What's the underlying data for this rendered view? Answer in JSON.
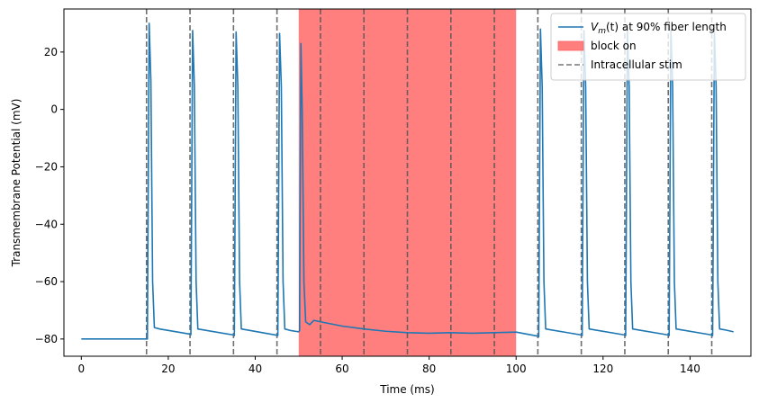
{
  "chart_data": {
    "type": "line",
    "title": "",
    "xlabel": "Time (ms)",
    "ylabel": "Transmembrane Potential (mV)",
    "xlim": [
      -4,
      154
    ],
    "ylim": [
      -86,
      35
    ],
    "xticks": [
      0,
      20,
      40,
      60,
      80,
      100,
      120,
      140
    ],
    "yticks": [
      -80,
      -60,
      -40,
      -20,
      0,
      20
    ],
    "grid": false,
    "legend_position": "top-right",
    "series": [
      {
        "name": "V_m(t) at 90% fiber length",
        "color": "#1f77b4",
        "style": "solid",
        "description": "Resting near -80 mV with action potentials (~+27 mV) after each stimulus; suppressed during block",
        "points": [
          [
            0,
            -80
          ],
          [
            15,
            -80
          ],
          [
            15.2,
            -80
          ],
          [
            15.6,
            30
          ],
          [
            16.0,
            10
          ],
          [
            16.4,
            -60
          ],
          [
            16.8,
            -76
          ],
          [
            18,
            -76.5
          ],
          [
            25,
            -78.3
          ],
          [
            25.2,
            -78.5
          ],
          [
            25.6,
            27.5
          ],
          [
            26.0,
            8
          ],
          [
            26.4,
            -60
          ],
          [
            26.8,
            -76.5
          ],
          [
            28,
            -76.8
          ],
          [
            35,
            -78.6
          ],
          [
            35.2,
            -78.8
          ],
          [
            35.6,
            27
          ],
          [
            36.0,
            8
          ],
          [
            36.4,
            -60
          ],
          [
            36.8,
            -76.5
          ],
          [
            38,
            -76.8
          ],
          [
            45,
            -78.7
          ],
          [
            45.2,
            -78.8
          ],
          [
            45.6,
            26.5
          ],
          [
            46.0,
            8
          ],
          [
            46.4,
            -60
          ],
          [
            46.8,
            -76.5
          ],
          [
            48,
            -77
          ],
          [
            50,
            -77.5
          ],
          [
            50.2,
            -77
          ],
          [
            50.5,
            23
          ],
          [
            50.8,
            0
          ],
          [
            51.2,
            -60
          ],
          [
            51.6,
            -74
          ],
          [
            52.5,
            -75
          ],
          [
            53.5,
            -73.5
          ],
          [
            55,
            -74
          ],
          [
            60,
            -75.5
          ],
          [
            65,
            -76.5
          ],
          [
            70,
            -77.3
          ],
          [
            75,
            -77.8
          ],
          [
            80,
            -78
          ],
          [
            85,
            -77.8
          ],
          [
            90,
            -78
          ],
          [
            95,
            -77.8
          ],
          [
            100,
            -77.6
          ],
          [
            105,
            -79
          ],
          [
            105.2,
            -79.2
          ],
          [
            105.6,
            28
          ],
          [
            106.0,
            8
          ],
          [
            106.4,
            -60
          ],
          [
            106.8,
            -76.5
          ],
          [
            108,
            -76.8
          ],
          [
            115,
            -78.6
          ],
          [
            115.2,
            -78.8
          ],
          [
            115.6,
            27.5
          ],
          [
            116.0,
            8
          ],
          [
            116.4,
            -60
          ],
          [
            116.8,
            -76.5
          ],
          [
            118,
            -76.8
          ],
          [
            125,
            -78.6
          ],
          [
            125.2,
            -78.8
          ],
          [
            125.6,
            27.5
          ],
          [
            126.0,
            8
          ],
          [
            126.4,
            -60
          ],
          [
            126.8,
            -76.5
          ],
          [
            128,
            -76.8
          ],
          [
            135,
            -78.6
          ],
          [
            135.2,
            -78.8
          ],
          [
            135.6,
            27.5
          ],
          [
            136.0,
            8
          ],
          [
            136.4,
            -60
          ],
          [
            136.8,
            -76.5
          ],
          [
            138,
            -76.8
          ],
          [
            145,
            -78.6
          ],
          [
            145.2,
            -78.8
          ],
          [
            145.6,
            27.5
          ],
          [
            146.0,
            8
          ],
          [
            146.4,
            -60
          ],
          [
            146.8,
            -76.5
          ],
          [
            148,
            -76.8
          ],
          [
            150,
            -77.5
          ]
        ]
      }
    ],
    "block": {
      "name": "block on",
      "x_start": 50,
      "x_end": 100,
      "color": "#ff0000",
      "opacity": 0.5
    },
    "stim": {
      "name": "Intracellular stim",
      "color": "#555555",
      "times": [
        15,
        25,
        35,
        45,
        55,
        65,
        75,
        85,
        95,
        105,
        115,
        125,
        135,
        145
      ]
    },
    "legend": [
      {
        "kind": "line",
        "prefix": "V",
        "sub": "m",
        "suffix": "(t) at 90% fiber length",
        "color": "#1f77b4"
      },
      {
        "kind": "patch",
        "label": "block on",
        "color": "#ff7f7f"
      },
      {
        "kind": "dash",
        "label": "Intracellular stim",
        "color": "#777777"
      }
    ]
  }
}
